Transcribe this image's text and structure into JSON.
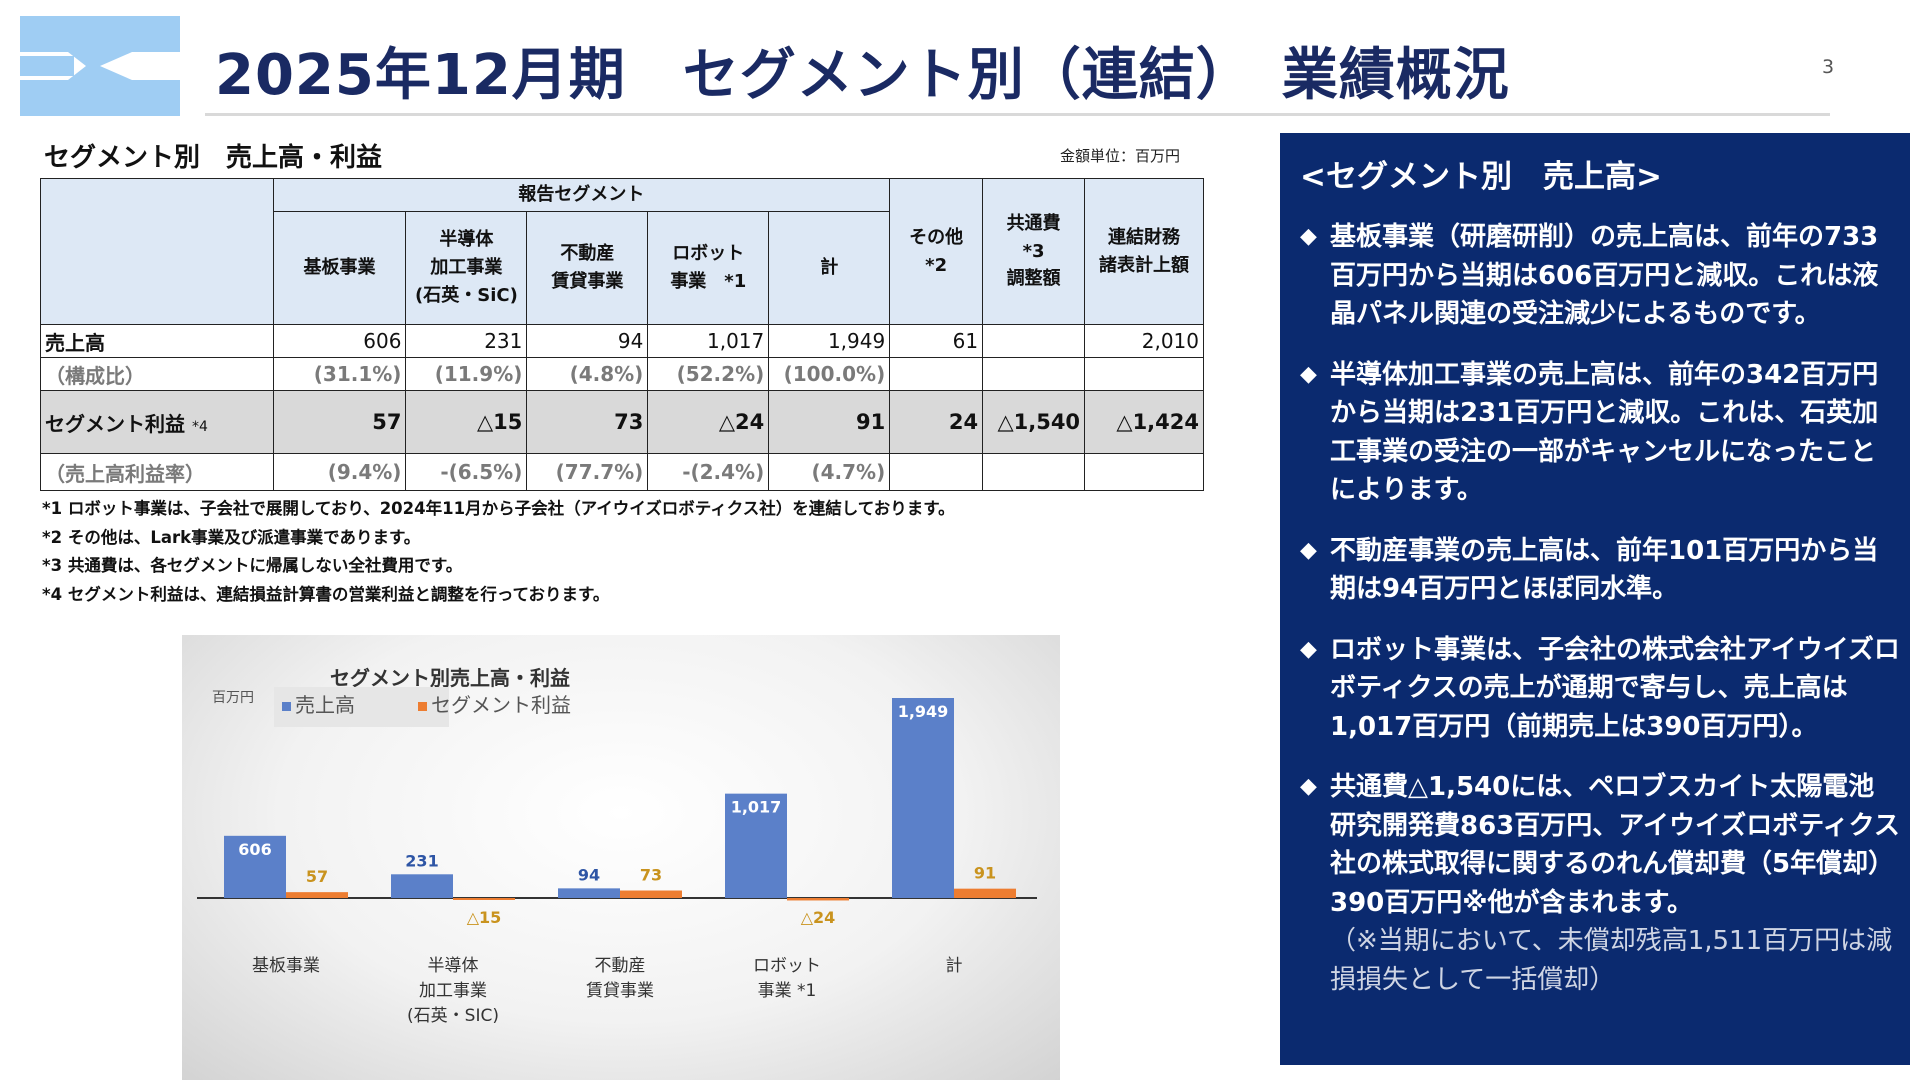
{
  "page": {
    "title": "2025年12月期　セグメント別（連結）　業績概況",
    "page_number": "3"
  },
  "table_section": {
    "title": "セグメント別　売上高・利益",
    "unit_note": "金額単位：百万円",
    "header": {
      "group": "報告セグメント",
      "cols": [
        "基板事業",
        "半導体\n加工事業\n(石英・SiC)",
        "不動産\n賃貸事業",
        "ロボット\n事業　*1",
        "計",
        "その他\n*2",
        "共通費\n*3\n調整額",
        "連結財務\n諸表計上額"
      ]
    },
    "rows": [
      {
        "label": "売上高",
        "values": [
          "606",
          "231",
          "94",
          "1,017",
          "1,949",
          "61",
          "",
          "2,010"
        ]
      },
      {
        "label": "（構成比）",
        "values": [
          "(31.1%)",
          "(11.9%)",
          "(4.8%)",
          "(52.2%)",
          "(100.0%)",
          "",
          "",
          ""
        ]
      },
      {
        "label": "セグメント利益",
        "label_sup": "*4",
        "values": [
          "57",
          "△15",
          "73",
          "△24",
          "91",
          "24",
          "△1,540",
          "△1,424"
        ]
      },
      {
        "label": "（売上高利益率）",
        "values": [
          "(9.4%)",
          "-(6.5%)",
          "(77.7%)",
          "-(2.4%)",
          "(4.7%)",
          "",
          "",
          ""
        ]
      }
    ],
    "footnotes": [
      "*1 ロボット事業は、子会社で展開しており、2024年11月から子会社（アイウイズロボティクス社）を連結しております。",
      "*2 その他は、Lark事業及び派遣事業であります。",
      "*3 共通費は、各セグメントに帰属しない全社費用です。",
      "*4 セグメント利益は、連結損益計算書の営業利益と調整を行っております。"
    ]
  },
  "chart_data": {
    "type": "bar",
    "title": "セグメント別売上高・利益",
    "ylabel": "百万円",
    "categories": [
      "基板事業",
      "半導体\n加工事業\n(石英・SIC)",
      "不動産\n賃貸事業",
      "ロボット\n事業 *1",
      "計"
    ],
    "series": [
      {
        "name": "売上高",
        "color": "#5b80c9",
        "values": [
          606,
          231,
          94,
          1017,
          1949
        ],
        "labels": [
          "606",
          "231",
          "94",
          "1,017",
          "1,949"
        ]
      },
      {
        "name": "セグメント利益",
        "color": "#ed7d31",
        "values": [
          57,
          -15,
          73,
          -24,
          91
        ],
        "labels": [
          "57",
          "△15",
          "73",
          "△24",
          "91"
        ]
      }
    ],
    "legend_position": "top-left",
    "grid": false
  },
  "panel": {
    "heading": "<セグメント別　売上高>",
    "bullets": [
      {
        "text": "基板事業（研磨研削）の売上高は、前年の733百万円から当期は606百万円と減収。これは液晶パネル関連の受注減少によるものです。"
      },
      {
        "text": "半導体加工事業の売上高は、前年の342百万円から当期は231百万円と減収。これは、石英加工事業の受注の一部がキャンセルになったことによります。"
      },
      {
        "text": "不動産事業の売上高は、前年101百万円から当期は94百万円とほぼ同水準。"
      },
      {
        "text": "ロボット事業は、子会社の株式会社アイウイズロボティクスの売上が通期で寄与し、売上高は1,017百万円（前期売上は390百万円）。"
      },
      {
        "text": "共通費△1,540には、ペロブスカイト太陽電池研究開発費863百万円、アイウイズロボティクス社の株式取得に関するのれん償却費（5年償却）390百万円※他が含まれます。",
        "note": "（※当期において、未償却残高1,511百万円は減損損失として一括償却）"
      }
    ],
    "colors": {
      "background": "#0b2a6f",
      "text": "#ffffff"
    }
  }
}
